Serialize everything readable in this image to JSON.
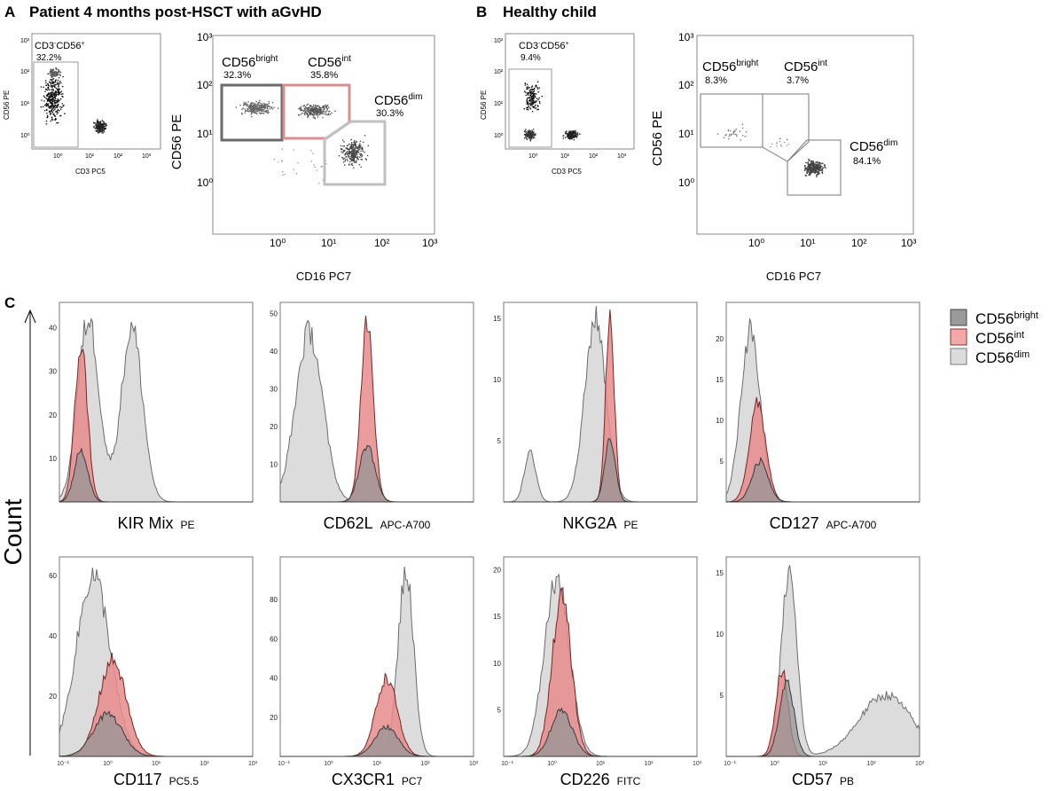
{
  "panelA": {
    "letter": "A",
    "title": "Patient 4 months post-HSCT with aGvHD",
    "scatter": {
      "gate_label": "CD3-CD56+",
      "gate_pct": "32.2%",
      "xlabel": "CD3 PC5",
      "ylabel": "CD56 PE",
      "x_ticks": [
        "10⁰",
        "10¹",
        "10²",
        "10³"
      ],
      "y_ticks": [
        "10⁰",
        "10¹",
        "10²",
        "10³"
      ]
    },
    "gates": {
      "xlabel": "CD16 PC7",
      "ylabel": "CD56 PE",
      "x_ticks": [
        "10⁰",
        "10¹",
        "10²",
        "10³"
      ],
      "y_ticks": [
        "10⁰",
        "10¹",
        "10²",
        "10³"
      ],
      "bright": {
        "name": "CD56",
        "sup": "bright",
        "pct": "32.3%"
      },
      "int": {
        "name": "CD56",
        "sup": "int",
        "pct": "35.8%"
      },
      "dim": {
        "name": "CD56",
        "sup": "dim",
        "pct": "30.3%"
      }
    }
  },
  "panelB": {
    "letter": "B",
    "title": "Healthy child",
    "scatter": {
      "gate_label": "CD3-CD56+",
      "gate_pct": "9.4%",
      "xlabel": "CD3 PC5",
      "ylabel": "CD56 PE",
      "x_ticks": [
        "10⁰",
        "10¹",
        "10²",
        "10³"
      ],
      "y_ticks": [
        "10⁰",
        "10¹",
        "10²",
        "10³"
      ]
    },
    "gates": {
      "xlabel": "CD16 PC7",
      "ylabel": "CD56 PE",
      "x_ticks": [
        "10⁰",
        "10¹",
        "10²",
        "10³"
      ],
      "y_ticks": [
        "10⁰",
        "10¹",
        "10²",
        "10³"
      ],
      "bright": {
        "name": "CD56",
        "sup": "bright",
        "pct": "8.3%"
      },
      "int": {
        "name": "CD56",
        "sup": "int",
        "pct": "3.7%"
      },
      "dim": {
        "name": "CD56",
        "sup": "dim",
        "pct": "84.1%"
      }
    }
  },
  "panelC": {
    "letter": "C",
    "ylabel": "Count",
    "legend": [
      {
        "name": "CD56",
        "sup": "bright",
        "color": "#9a9a9a"
      },
      {
        "name": "CD56",
        "sup": "int",
        "color": "#f2a8a8"
      },
      {
        "name": "CD56",
        "sup": "dim",
        "color": "#dcdcdc"
      }
    ]
  },
  "chart_data": [
    {
      "type": "area",
      "title": "KIR Mix",
      "channel": "PE",
      "y_ticks": [
        "10",
        "20",
        "30",
        "40"
      ],
      "ylim": [
        0,
        45
      ],
      "series": [
        {
          "name": "CD56dim",
          "peaks": [
            {
              "center": 0.6,
              "width": 0.22,
              "height": 42
            },
            {
              "center": 1.5,
              "width": 0.22,
              "height": 40
            }
          ]
        },
        {
          "name": "CD56int",
          "peaks": [
            {
              "center": 0.45,
              "width": 0.13,
              "height": 36
            }
          ]
        },
        {
          "name": "CD56bright",
          "peaks": [
            {
              "center": 0.45,
              "width": 0.14,
              "height": 12
            }
          ]
        }
      ]
    },
    {
      "type": "area",
      "title": "CD62L",
      "channel": "APC-A700",
      "y_ticks": [
        "10",
        "20",
        "30",
        "40",
        "50"
      ],
      "ylim": [
        0,
        52
      ],
      "series": [
        {
          "name": "CD56dim",
          "peaks": [
            {
              "center": 0.6,
              "width": 0.28,
              "height": 45
            }
          ]
        },
        {
          "name": "CD56int",
          "peaks": [
            {
              "center": 1.8,
              "width": 0.13,
              "height": 48
            }
          ]
        },
        {
          "name": "CD56bright",
          "peaks": [
            {
              "center": 1.8,
              "width": 0.16,
              "height": 15
            }
          ]
        }
      ]
    },
    {
      "type": "area",
      "title": "NKG2A",
      "channel": "PE",
      "y_ticks": [
        "5",
        "10",
        "15"
      ],
      "ylim": [
        0,
        16
      ],
      "series": [
        {
          "name": "CD56dim",
          "peaks": [
            {
              "center": 0.55,
              "width": 0.12,
              "height": 4
            },
            {
              "center": 1.9,
              "width": 0.22,
              "height": 15
            }
          ]
        },
        {
          "name": "CD56int",
          "peaks": [
            {
              "center": 2.2,
              "width": 0.09,
              "height": 15
            }
          ]
        },
        {
          "name": "CD56bright",
          "peaks": [
            {
              "center": 2.2,
              "width": 0.11,
              "height": 5
            }
          ]
        }
      ]
    },
    {
      "type": "area",
      "title": "CD127",
      "channel": "APC-A700",
      "y_ticks": [
        "5",
        "10",
        "15",
        "20"
      ],
      "ylim": [
        0,
        24
      ],
      "series": [
        {
          "name": "CD56dim",
          "peaks": [
            {
              "center": 0.5,
              "width": 0.2,
              "height": 21
            }
          ]
        },
        {
          "name": "CD56int",
          "peaks": [
            {
              "center": 0.65,
              "width": 0.17,
              "height": 12
            }
          ]
        },
        {
          "name": "CD56bright",
          "peaks": [
            {
              "center": 0.7,
              "width": 0.17,
              "height": 5
            }
          ]
        }
      ]
    },
    {
      "type": "area",
      "title": "CD117",
      "channel": "PC5.5",
      "y_ticks": [
        "20",
        "40",
        "60"
      ],
      "ylim": [
        0,
        65
      ],
      "series": [
        {
          "name": "CD56dim",
          "peaks": [
            {
              "center": 0.7,
              "width": 0.35,
              "height": 60
            }
          ]
        },
        {
          "name": "CD56int",
          "peaks": [
            {
              "center": 1.1,
              "width": 0.28,
              "height": 32
            }
          ]
        },
        {
          "name": "CD56bright",
          "peaks": [
            {
              "center": 1.0,
              "width": 0.3,
              "height": 14
            }
          ]
        }
      ]
    },
    {
      "type": "area",
      "title": "CX3CR1",
      "channel": "PC7",
      "y_ticks": [
        "20",
        "40",
        "60",
        "80"
      ],
      "ylim": [
        0,
        100
      ],
      "series": [
        {
          "name": "CD56dim",
          "peaks": [
            {
              "center": 2.6,
              "width": 0.16,
              "height": 95
            }
          ]
        },
        {
          "name": "CD56int",
          "peaks": [
            {
              "center": 2.2,
              "width": 0.22,
              "height": 40
            }
          ]
        },
        {
          "name": "CD56bright",
          "peaks": [
            {
              "center": 2.2,
              "width": 0.24,
              "height": 15
            }
          ]
        }
      ]
    },
    {
      "type": "area",
      "title": "CD226",
      "channel": "FITC",
      "y_ticks": [
        "5",
        "10",
        "15",
        "20"
      ],
      "ylim": [
        0,
        21
      ],
      "series": [
        {
          "name": "CD56dim",
          "peaks": [
            {
              "center": 1.1,
              "width": 0.26,
              "height": 19
            }
          ]
        },
        {
          "name": "CD56int",
          "peaks": [
            {
              "center": 1.2,
              "width": 0.2,
              "height": 17
            }
          ]
        },
        {
          "name": "CD56bright",
          "peaks": [
            {
              "center": 1.2,
              "width": 0.22,
              "height": 5
            }
          ]
        }
      ]
    },
    {
      "type": "area",
      "title": "CD57",
      "channel": "PB",
      "y_ticks": [
        "5",
        "10",
        "15"
      ],
      "ylim": [
        0,
        16
      ],
      "series": [
        {
          "name": "CD56dim",
          "peaks": [
            {
              "center": 1.3,
              "width": 0.16,
              "height": 15
            },
            {
              "center": 3.3,
              "width": 0.55,
              "height": 5
            }
          ]
        },
        {
          "name": "CD56int",
          "peaks": [
            {
              "center": 1.15,
              "width": 0.13,
              "height": 7
            }
          ]
        },
        {
          "name": "CD56bright",
          "peaks": [
            {
              "center": 1.25,
              "width": 0.15,
              "height": 6
            }
          ]
        }
      ]
    }
  ]
}
